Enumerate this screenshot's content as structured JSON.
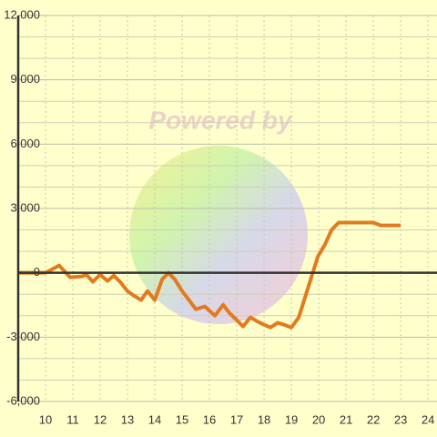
{
  "chart_data": {
    "type": "line",
    "watermark": "Powered by",
    "x": [
      9,
      10,
      10.5,
      10.9,
      11.33,
      11.5,
      11.73,
      12,
      12.27,
      12.5,
      12.73,
      13,
      13.23,
      13.5,
      13.73,
      14,
      14.27,
      14.5,
      14.73,
      15,
      15.23,
      15.5,
      15.83,
      16.2,
      16.5,
      16.73,
      17,
      17.23,
      17.5,
      17.73,
      18,
      18.23,
      18.5,
      18.73,
      19,
      19.27,
      19.5,
      19.73,
      19.97,
      20.23,
      20.47,
      20.73,
      21,
      22,
      22.27,
      23
    ],
    "series": [
      {
        "color": "#e07b1f",
        "values": [
          0,
          0,
          340,
          -210,
          -170,
          -85,
          -420,
          -85,
          -380,
          -130,
          -420,
          -850,
          -1060,
          -1270,
          -850,
          -1270,
          -300,
          0,
          -300,
          -850,
          -1230,
          -1700,
          -1570,
          -2000,
          -1490,
          -1870,
          -2210,
          -2500,
          -2080,
          -2250,
          -2420,
          -2550,
          -2330,
          -2420,
          -2550,
          -2080,
          -1150,
          -210,
          760,
          1320,
          2000,
          2340,
          2340,
          2340,
          2210,
          2210
        ]
      }
    ],
    "xlim": [
      9,
      24.33
    ],
    "xticks": [
      10,
      11,
      12,
      13,
      14,
      15,
      16,
      17,
      18,
      19,
      20,
      21,
      22,
      23,
      24
    ],
    "ylim": [
      -6000,
      12000
    ],
    "yticks": [
      {
        "value": -6000,
        "label": "-6,000"
      },
      {
        "value": -3000,
        "label": "-3,000"
      },
      0,
      {
        "value": 3000,
        "label": "3,000"
      },
      {
        "value": 6000,
        "label": "6,000"
      },
      {
        "value": 9000,
        "label": "9,000"
      },
      {
        "value": 12000,
        "label": "12,000"
      }
    ],
    "y_minor_gridlines": [
      -5000,
      -4000,
      -2000,
      -1000,
      1000,
      2000,
      4000,
      5000,
      7000,
      8000,
      10000,
      11000
    ],
    "grid": true
  }
}
